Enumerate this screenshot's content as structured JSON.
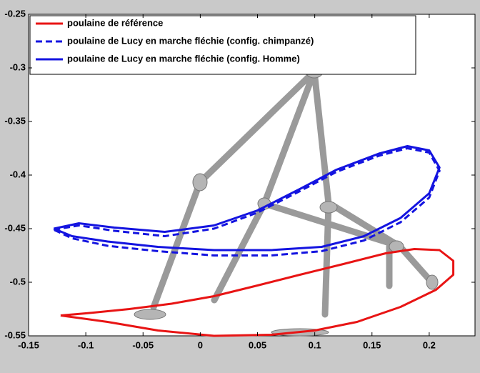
{
  "chart_data": {
    "type": "line",
    "xlim": [
      -0.15,
      0.24
    ],
    "xticks": [
      -0.15,
      -0.1,
      -0.05,
      0,
      0.05,
      0.1,
      0.15,
      0.2
    ],
    "ylim": [
      -0.55,
      -0.25
    ],
    "yticks": [
      -0.55,
      -0.5,
      -0.45,
      -0.4,
      -0.35,
      -0.3,
      -0.25
    ],
    "legend": "upper left",
    "series": [
      {
        "name": "poulaine de référence",
        "color": "#e81414",
        "style": "solid",
        "x": [
          -0.122,
          -0.081,
          -0.037,
          0.012,
          0.062,
          0.1,
          0.137,
          0.175,
          0.206,
          0.221,
          0.221,
          0.209,
          0.187,
          0.162,
          0.125,
          0.087,
          0.05,
          0.012,
          -0.025,
          -0.062,
          -0.1,
          -0.122
        ],
        "values": [
          -0.531,
          -0.537,
          -0.545,
          -0.55,
          -0.549,
          -0.545,
          -0.537,
          -0.523,
          -0.507,
          -0.493,
          -0.48,
          -0.47,
          -0.469,
          -0.473,
          -0.483,
          -0.493,
          -0.503,
          -0.513,
          -0.52,
          -0.525,
          -0.529,
          -0.531
        ]
      },
      {
        "name": "poulaine de Lucy en marche fléchie (config. chimpanzé)",
        "color": "#1414e0",
        "style": "dashed",
        "x": [
          -0.128,
          -0.106,
          -0.075,
          -0.031,
          0.012,
          0.05,
          0.087,
          0.119,
          0.156,
          0.181,
          0.2,
          0.209,
          0.2,
          0.175,
          0.143,
          0.106,
          0.062,
          0.012,
          -0.037,
          -0.081,
          -0.112,
          -0.128
        ],
        "values": [
          -0.451,
          -0.447,
          -0.452,
          -0.457,
          -0.45,
          -0.435,
          -0.415,
          -0.397,
          -0.382,
          -0.375,
          -0.379,
          -0.396,
          -0.421,
          -0.444,
          -0.461,
          -0.471,
          -0.475,
          -0.475,
          -0.471,
          -0.466,
          -0.459,
          -0.451
        ]
      },
      {
        "name": "poulaine de Lucy en marche fléchie (config. Homme)",
        "color": "#1414e0",
        "style": "solid",
        "x": [
          -0.128,
          -0.106,
          -0.075,
          -0.031,
          0.012,
          0.05,
          0.087,
          0.119,
          0.156,
          0.181,
          0.2,
          0.209,
          0.2,
          0.175,
          0.143,
          0.106,
          0.062,
          0.012,
          -0.037,
          -0.081,
          -0.112,
          -0.128
        ],
        "values": [
          -0.45,
          -0.445,
          -0.449,
          -0.453,
          -0.447,
          -0.433,
          -0.413,
          -0.395,
          -0.38,
          -0.373,
          -0.377,
          -0.393,
          -0.417,
          -0.44,
          -0.457,
          -0.467,
          -0.47,
          -0.47,
          -0.467,
          -0.462,
          -0.457,
          -0.45
        ]
      }
    ]
  }
}
